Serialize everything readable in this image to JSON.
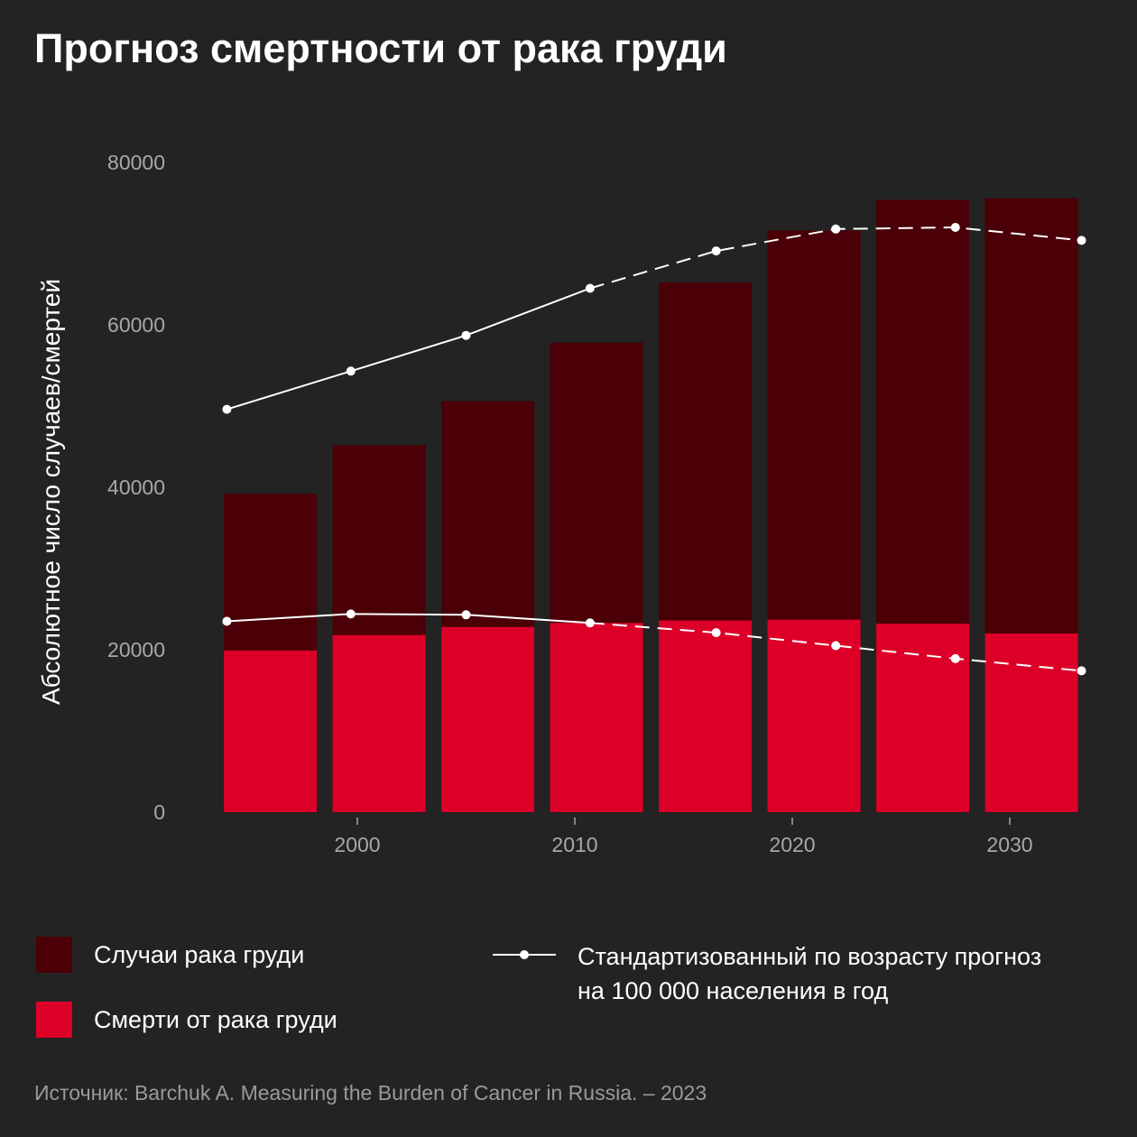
{
  "title": "Прогноз смертности от рака груди",
  "source": "Источник: Barchuk A. Measuring the Burden of Cancer in Russia. – 2023",
  "legend": {
    "cases": "Случаи рака груди",
    "deaths": "Смерти от рака груди",
    "rate_line1": "Стандартизованный по возрасту прогноз",
    "rate_line2": "на 100 000 населения в год"
  },
  "colors": {
    "background": "#232323",
    "cases": "#4a0006",
    "deaths": "#dc0028",
    "line": "#ffffff",
    "tick_text": "#a8a8a8"
  },
  "chart_data": {
    "type": "bar",
    "ylabel": "Абсолютное число случаев/смертей",
    "xlabel": "",
    "ylim": [
      0,
      80000
    ],
    "yticks": [
      0,
      20000,
      40000,
      60000,
      80000
    ],
    "xticks": [
      2000,
      2010,
      2020,
      2030
    ],
    "x": [
      1996,
      2001,
      2006,
      2011,
      2016,
      2021,
      2026,
      2031
    ],
    "series": [
      {
        "name": "Случаи рака груди",
        "kind": "bar",
        "values": [
          39200,
          45200,
          50600,
          57800,
          65200,
          71600,
          75400,
          75600
        ]
      },
      {
        "name": "Смерти от рака груди",
        "kind": "bar",
        "values": [
          19900,
          21800,
          22800,
          23300,
          23600,
          23700,
          23200,
          22000
        ]
      }
    ],
    "lines": [
      {
        "name": "Стандартизованный по возрасту прогноз на 100 000 населения в год",
        "group": "cases",
        "x": [
          1994,
          1999.7,
          2005,
          2010.7,
          2016.5,
          2022,
          2027.5,
          2033.3
        ],
        "y": [
          49600,
          54300,
          58700,
          64500,
          69100,
          71800,
          72000,
          70400
        ],
        "solid_until_index": 3
      },
      {
        "name": "Стандартизованный по возрасту прогноз на 100 000 населения в год",
        "group": "deaths",
        "x": [
          1994,
          1999.7,
          2005,
          2010.7,
          2016.5,
          2022,
          2027.5,
          2033.3
        ],
        "y": [
          23500,
          24400,
          24300,
          23300,
          22100,
          20500,
          18900,
          17400
        ],
        "solid_until_index": 3
      }
    ]
  }
}
